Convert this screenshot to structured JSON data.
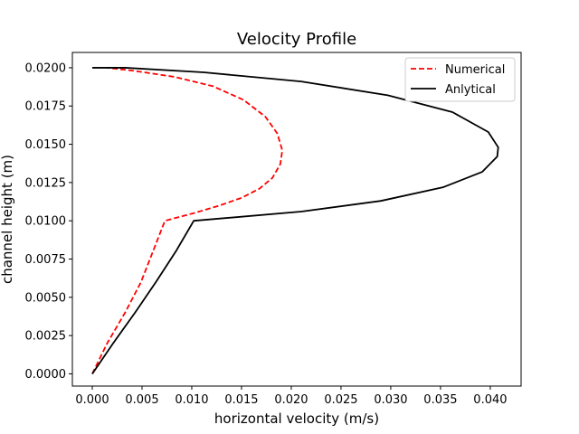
{
  "chart_data": {
    "type": "line",
    "title": "Velocity Profile",
    "xlabel": "horizontal velocity (m/s)",
    "ylabel": "channel height (m)",
    "xlim": [
      -0.002,
      0.0431
    ],
    "ylim": [
      -0.0008,
      0.021
    ],
    "xticks": [
      0.0,
      0.005,
      0.01,
      0.015,
      0.02,
      0.025,
      0.03,
      0.035,
      0.04
    ],
    "xtick_labels": [
      "0.000",
      "0.005",
      "0.010",
      "0.015",
      "0.020",
      "0.025",
      "0.030",
      "0.035",
      "0.040"
    ],
    "yticks": [
      0.0,
      0.0025,
      0.005,
      0.0075,
      0.01,
      0.0125,
      0.015,
      0.0175,
      0.02
    ],
    "ytick_labels": [
      "0.0000",
      "0.0025",
      "0.0050",
      "0.0075",
      "0.0100",
      "0.0125",
      "0.0150",
      "0.0175",
      "0.0200"
    ],
    "grid": false,
    "legend_position": "top-right",
    "series": [
      {
        "name": "Numerical",
        "color": "#ff0000",
        "style": "dashed",
        "points": [
          [
            0.0,
            0.0
          ],
          [
            0.0015,
            0.002
          ],
          [
            0.0033,
            0.004
          ],
          [
            0.0049,
            0.006
          ],
          [
            0.0061,
            0.008
          ],
          [
            0.0073,
            0.01
          ],
          [
            0.0102,
            0.0105
          ],
          [
            0.0128,
            0.011
          ],
          [
            0.015,
            0.0115
          ],
          [
            0.0168,
            0.0121
          ],
          [
            0.0181,
            0.0128
          ],
          [
            0.0189,
            0.0137
          ],
          [
            0.0191,
            0.0146
          ],
          [
            0.0186,
            0.0157
          ],
          [
            0.0174,
            0.0168
          ],
          [
            0.0152,
            0.0179
          ],
          [
            0.0121,
            0.0188
          ],
          [
            0.0083,
            0.0194
          ],
          [
            0.0042,
            0.0198
          ],
          [
            0.0015,
            0.02
          ]
        ]
      },
      {
        "name": "Anlytical",
        "color": "#000000",
        "style": "solid",
        "points": [
          [
            0.0,
            0.0
          ],
          [
            0.0021,
            0.002
          ],
          [
            0.0043,
            0.004
          ],
          [
            0.0064,
            0.006
          ],
          [
            0.0084,
            0.008
          ],
          [
            0.0102,
            0.01
          ],
          [
            0.021,
            0.0106
          ],
          [
            0.029,
            0.0113
          ],
          [
            0.0353,
            0.0122
          ],
          [
            0.0392,
            0.0132
          ],
          [
            0.0407,
            0.0142
          ],
          [
            0.0408,
            0.0148
          ],
          [
            0.0398,
            0.0158
          ],
          [
            0.0362,
            0.0171
          ],
          [
            0.0297,
            0.0182
          ],
          [
            0.021,
            0.0191
          ],
          [
            0.0112,
            0.0197
          ],
          [
            0.0033,
            0.02
          ],
          [
            0.0,
            0.02
          ]
        ]
      }
    ]
  }
}
